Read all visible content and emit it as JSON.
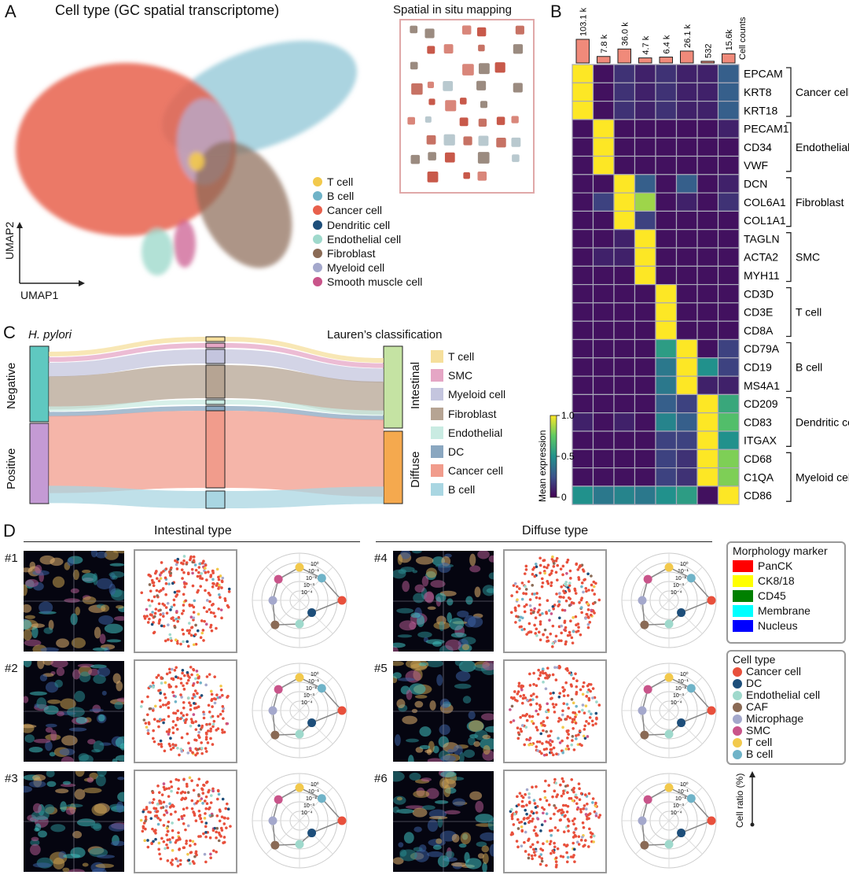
{
  "panel_labels": {
    "a": "A",
    "b": "B",
    "c": "C",
    "d": "D"
  },
  "panel_a": {
    "title": "Cell type (GC spatial transcriptome)",
    "spatial_title": "Spatial in situ mapping",
    "axis_x": "UMAP1",
    "axis_y": "UMAP2",
    "legend": [
      {
        "label": "T cell",
        "color": "#f2c94c"
      },
      {
        "label": "B cell",
        "color": "#6fb3c8"
      },
      {
        "label": "Cancer cell",
        "color": "#e8604c"
      },
      {
        "label": "Dendritic cell",
        "color": "#1d4e7a"
      },
      {
        "label": "Endothelial cell",
        "color": "#9fd9cc"
      },
      {
        "label": "Fibroblast",
        "color": "#8a6a55"
      },
      {
        "label": "Myeloid cell",
        "color": "#a4a8cc"
      },
      {
        "label": "Smooth muscle cell",
        "color": "#c9548a"
      }
    ]
  },
  "panel_b": {
    "counts_title": "Cell counts",
    "counts": [
      "103.1 k",
      "7.8 k",
      "36.0 k",
      "4.7 k",
      "6.4 k",
      "26.1 k",
      "532",
      "15.6k"
    ],
    "count_values": [
      103.1,
      7.8,
      36.0,
      4.7,
      6.4,
      26.1,
      0.532,
      15.6
    ],
    "genes": [
      "EPCAM",
      "KRT8",
      "KRT18",
      "PECAM1",
      "CD34",
      "VWF",
      "DCN",
      "COL6A1",
      "COL1A1",
      "TAGLN",
      "ACTA2",
      "MYH11",
      "CD3D",
      "CD3E",
      "CD8A",
      "CD79A",
      "CD19",
      "MS4A1",
      "CD209",
      "CD83",
      "ITGAX",
      "CD68",
      "C1QA",
      "CD86"
    ],
    "groups": [
      {
        "label": "Cancer cell",
        "rows": [
          0,
          2
        ]
      },
      {
        "label": "Endothelial",
        "rows": [
          3,
          5
        ]
      },
      {
        "label": "Fibroblast",
        "rows": [
          6,
          8
        ]
      },
      {
        "label": "SMC",
        "rows": [
          9,
          11
        ]
      },
      {
        "label": "T cell",
        "rows": [
          12,
          14
        ]
      },
      {
        "label": "B cell",
        "rows": [
          15,
          17
        ]
      },
      {
        "label": "Dendritic cell",
        "rows": [
          18,
          20
        ]
      },
      {
        "label": "Myeloid cell",
        "rows": [
          21,
          23
        ]
      }
    ],
    "matrix": [
      [
        1.0,
        0.05,
        0.15,
        0.1,
        0.15,
        0.1,
        0.1,
        0.3
      ],
      [
        1.0,
        0.05,
        0.15,
        0.1,
        0.15,
        0.1,
        0.1,
        0.3
      ],
      [
        1.0,
        0.05,
        0.15,
        0.1,
        0.15,
        0.1,
        0.1,
        0.3
      ],
      [
        0.05,
        1.0,
        0.05,
        0.05,
        0.05,
        0.05,
        0.05,
        0.1
      ],
      [
        0.05,
        1.0,
        0.05,
        0.05,
        0.05,
        0.05,
        0.05,
        0.05
      ],
      [
        0.05,
        1.0,
        0.05,
        0.05,
        0.05,
        0.05,
        0.05,
        0.05
      ],
      [
        0.05,
        0.05,
        1.0,
        0.3,
        0.05,
        0.3,
        0.05,
        0.1
      ],
      [
        0.05,
        0.2,
        1.0,
        0.85,
        0.05,
        0.1,
        0.05,
        0.15
      ],
      [
        0.05,
        0.05,
        1.0,
        0.2,
        0.05,
        0.05,
        0.05,
        0.05
      ],
      [
        0.05,
        0.05,
        0.1,
        1.0,
        0.05,
        0.05,
        0.05,
        0.05
      ],
      [
        0.05,
        0.1,
        0.1,
        1.0,
        0.05,
        0.05,
        0.05,
        0.05
      ],
      [
        0.05,
        0.05,
        0.05,
        1.0,
        0.05,
        0.05,
        0.05,
        0.05
      ],
      [
        0.05,
        0.05,
        0.05,
        0.05,
        1.0,
        0.05,
        0.05,
        0.05
      ],
      [
        0.05,
        0.05,
        0.05,
        0.05,
        1.0,
        0.05,
        0.05,
        0.05
      ],
      [
        0.05,
        0.05,
        0.05,
        0.05,
        1.0,
        0.05,
        0.05,
        0.05
      ],
      [
        0.05,
        0.05,
        0.05,
        0.05,
        0.55,
        1.0,
        0.05,
        0.2
      ],
      [
        0.05,
        0.05,
        0.05,
        0.05,
        0.4,
        1.0,
        0.5,
        0.2
      ],
      [
        0.05,
        0.05,
        0.05,
        0.05,
        0.4,
        1.0,
        0.1,
        0.1
      ],
      [
        0.05,
        0.05,
        0.05,
        0.05,
        0.3,
        0.2,
        1.0,
        0.6
      ],
      [
        0.1,
        0.05,
        0.1,
        0.05,
        0.45,
        0.3,
        1.0,
        0.7
      ],
      [
        0.05,
        0.05,
        0.05,
        0.05,
        0.2,
        0.2,
        1.0,
        0.5
      ],
      [
        0.05,
        0.05,
        0.05,
        0.05,
        0.2,
        0.15,
        1.0,
        0.8
      ],
      [
        0.05,
        0.05,
        0.05,
        0.05,
        0.2,
        0.15,
        1.0,
        0.8
      ],
      [
        0.5,
        0.4,
        0.45,
        0.4,
        0.5,
        0.55,
        0.05,
        1.0
      ]
    ],
    "colorbar_title": "Mean expression",
    "colorbar_ticks": [
      "1.0",
      "0.5",
      "0"
    ]
  },
  "panel_c": {
    "left_title": "H. pylori",
    "right_title": "Lauren’s classification",
    "left_groups": [
      "Negative",
      "Positive"
    ],
    "right_groups": [
      "Intestinal",
      "Diffuse"
    ],
    "legend": [
      {
        "label": "T cell",
        "color": "#f6df9c"
      },
      {
        "label": "SMC",
        "color": "#e5a6c5"
      },
      {
        "label": "Myeloid cell",
        "color": "#c4c5de"
      },
      {
        "label": "Fibroblast",
        "color": "#b6a493"
      },
      {
        "label": "Endothelial",
        "color": "#c9ebe2"
      },
      {
        "label": "DC",
        "color": "#8aa7c0"
      },
      {
        "label": "Cancer cell",
        "color": "#f19c8c"
      },
      {
        "label": "B cell",
        "color": "#a9d6e2"
      }
    ]
  },
  "panel_d": {
    "intestinal_title": "Intestinal type",
    "diffuse_title": "Diffuse type",
    "samples": [
      "#1",
      "#2",
      "#3",
      "#4",
      "#5",
      "#6"
    ],
    "radar_ticks": [
      "10⁰",
      "10⁻¹",
      "10⁻²",
      "10⁻³",
      "10⁻⁴"
    ],
    "morphology_title": "Morphology marker",
    "morphology": [
      {
        "label": "PanCK",
        "color": "#ff0000"
      },
      {
        "label": "CK8/18",
        "color": "#ffff00"
      },
      {
        "label": "CD45",
        "color": "#008000"
      },
      {
        "label": "Membrane",
        "color": "#00ffff"
      },
      {
        "label": "Nucleus",
        "color": "#0000ff"
      }
    ],
    "celltype_title": "Cell type",
    "celltypes": [
      {
        "label": "Cancer cell",
        "color": "#e8503c"
      },
      {
        "label": "DC",
        "color": "#1d4e7a"
      },
      {
        "label": "Endothelial cell",
        "color": "#9fd9cc"
      },
      {
        "label": "CAF",
        "color": "#8a6a55"
      },
      {
        "label": "Microphage",
        "color": "#a4a8cc"
      },
      {
        "label": "SMC",
        "color": "#c9548a"
      },
      {
        "label": "T cell",
        "color": "#f2c94c"
      },
      {
        "label": "B cell",
        "color": "#6fb3c8"
      }
    ],
    "ratio_label": "Cell ratio (%)"
  }
}
